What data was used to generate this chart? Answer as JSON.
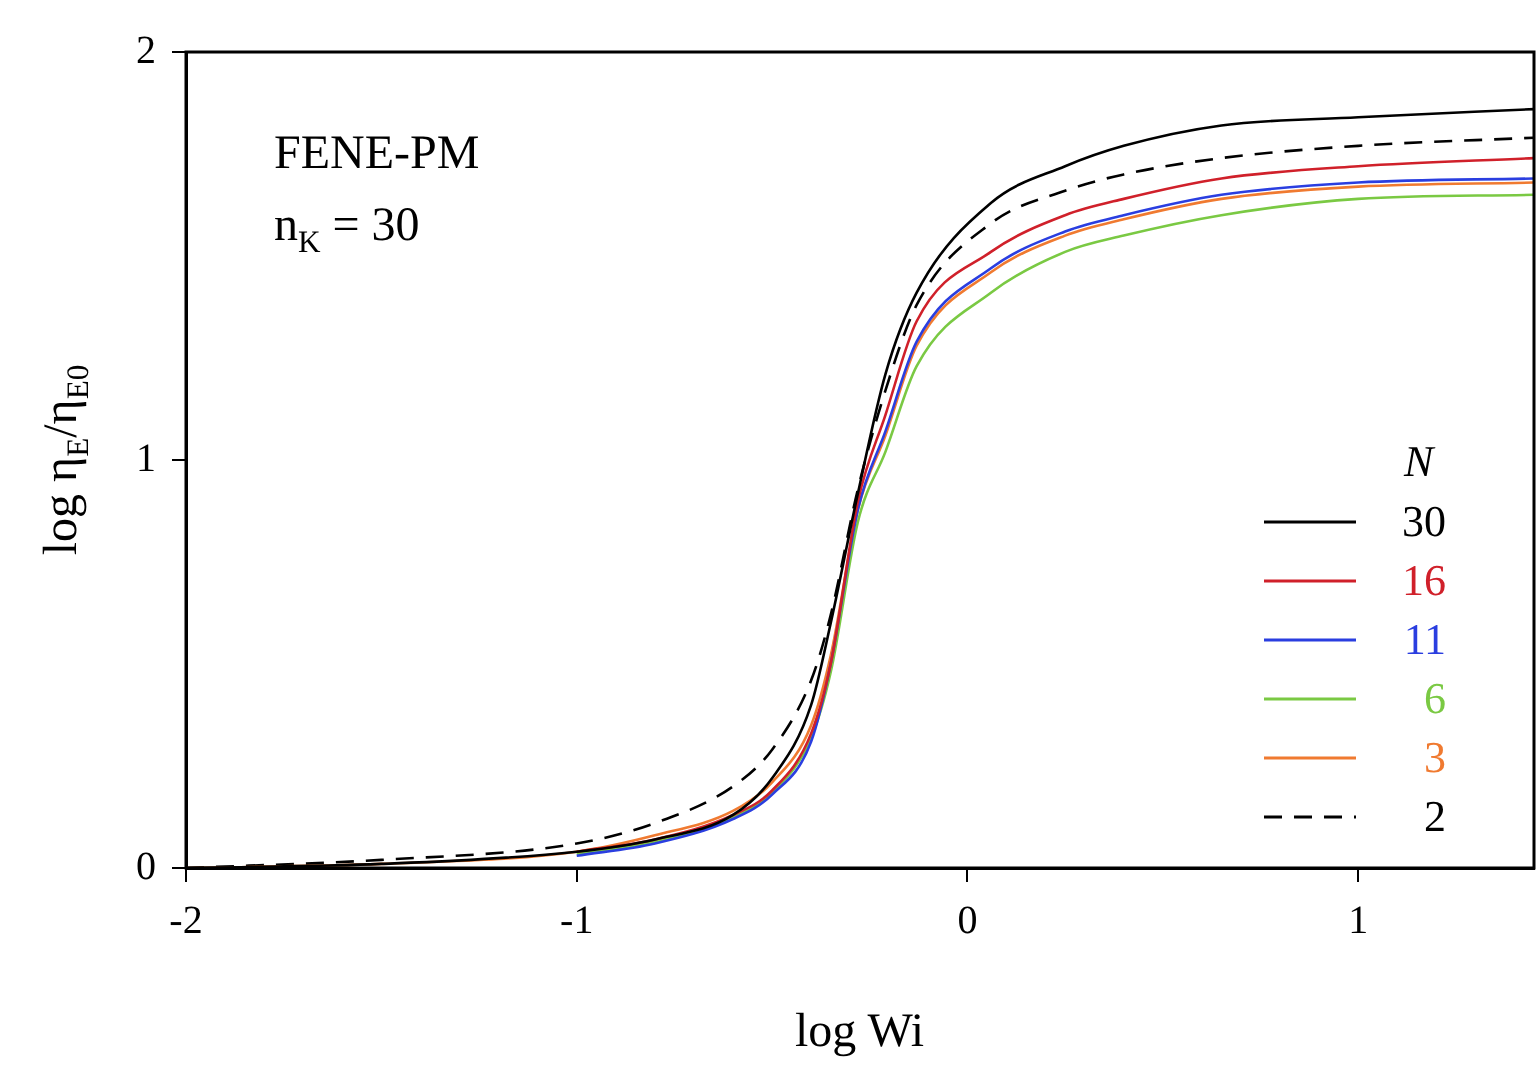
{
  "chart_data": {
    "type": "line",
    "xlabel": "log Wi",
    "ylabel": "log η$_{E}$/η$_{E0}$",
    "legend_title": "N",
    "annotations": [
      "FENE-PM",
      "n$_{K}$ = 30"
    ],
    "x": [
      -2,
      -1.5,
      -1,
      -0.8,
      -0.6,
      -0.5,
      -0.4,
      -0.35,
      -0.28,
      -0.21,
      -0.13,
      0.06,
      0.25,
      0.4,
      0.65,
      1,
      1.45
    ],
    "series": [
      {
        "name": "30",
        "color": "#000000",
        "values": [
          0,
          0.01,
          0.04,
          0.07,
          0.13,
          0.22,
          0.4,
          0.6,
          0.92,
          1.21,
          1.41,
          1.63,
          1.72,
          1.77,
          1.82,
          1.84,
          1.86
        ]
      },
      {
        "name": "16",
        "color": "#d0202a",
        "values": [
          null,
          null,
          0.04,
          0.07,
          0.13,
          0.19,
          0.33,
          0.5,
          0.9,
          1.11,
          1.34,
          1.51,
          1.6,
          1.64,
          1.69,
          1.72,
          1.74
        ]
      },
      {
        "name": "11",
        "color": "#2a3ee0",
        "values": [
          null,
          null,
          0.03,
          0.06,
          0.12,
          0.18,
          0.31,
          0.5,
          0.88,
          1.07,
          1.29,
          1.47,
          1.56,
          1.6,
          1.65,
          1.68,
          1.69
        ]
      },
      {
        "name": "6",
        "color": "#7ac943",
        "values": [
          null,
          null,
          0.035,
          0.065,
          0.125,
          0.185,
          0.32,
          0.48,
          0.85,
          1.02,
          1.23,
          1.41,
          1.51,
          1.55,
          1.6,
          1.64,
          1.65
        ]
      },
      {
        "name": "3",
        "color": "#f07a30",
        "values": [
          0,
          0.01,
          0.04,
          0.08,
          0.14,
          0.21,
          0.35,
          0.52,
          0.88,
          1.06,
          1.28,
          1.46,
          1.55,
          1.59,
          1.64,
          1.67,
          1.68
        ]
      },
      {
        "name": "2",
        "color": "#000000",
        "line_style": "dashed",
        "values": [
          0,
          0.02,
          0.06,
          0.11,
          0.2,
          0.29,
          0.46,
          0.62,
          0.93,
          1.17,
          1.38,
          1.58,
          1.66,
          1.7,
          1.74,
          1.77,
          1.79
        ]
      }
    ],
    "xlim": [
      -2,
      1.45
    ],
    "xticks": [
      -2,
      -1,
      0,
      1
    ],
    "ylim": [
      0,
      2
    ],
    "yticks": [
      0,
      1,
      2
    ],
    "grid": false,
    "legend": "right",
    "line_style": "solid",
    "marker": "none"
  }
}
